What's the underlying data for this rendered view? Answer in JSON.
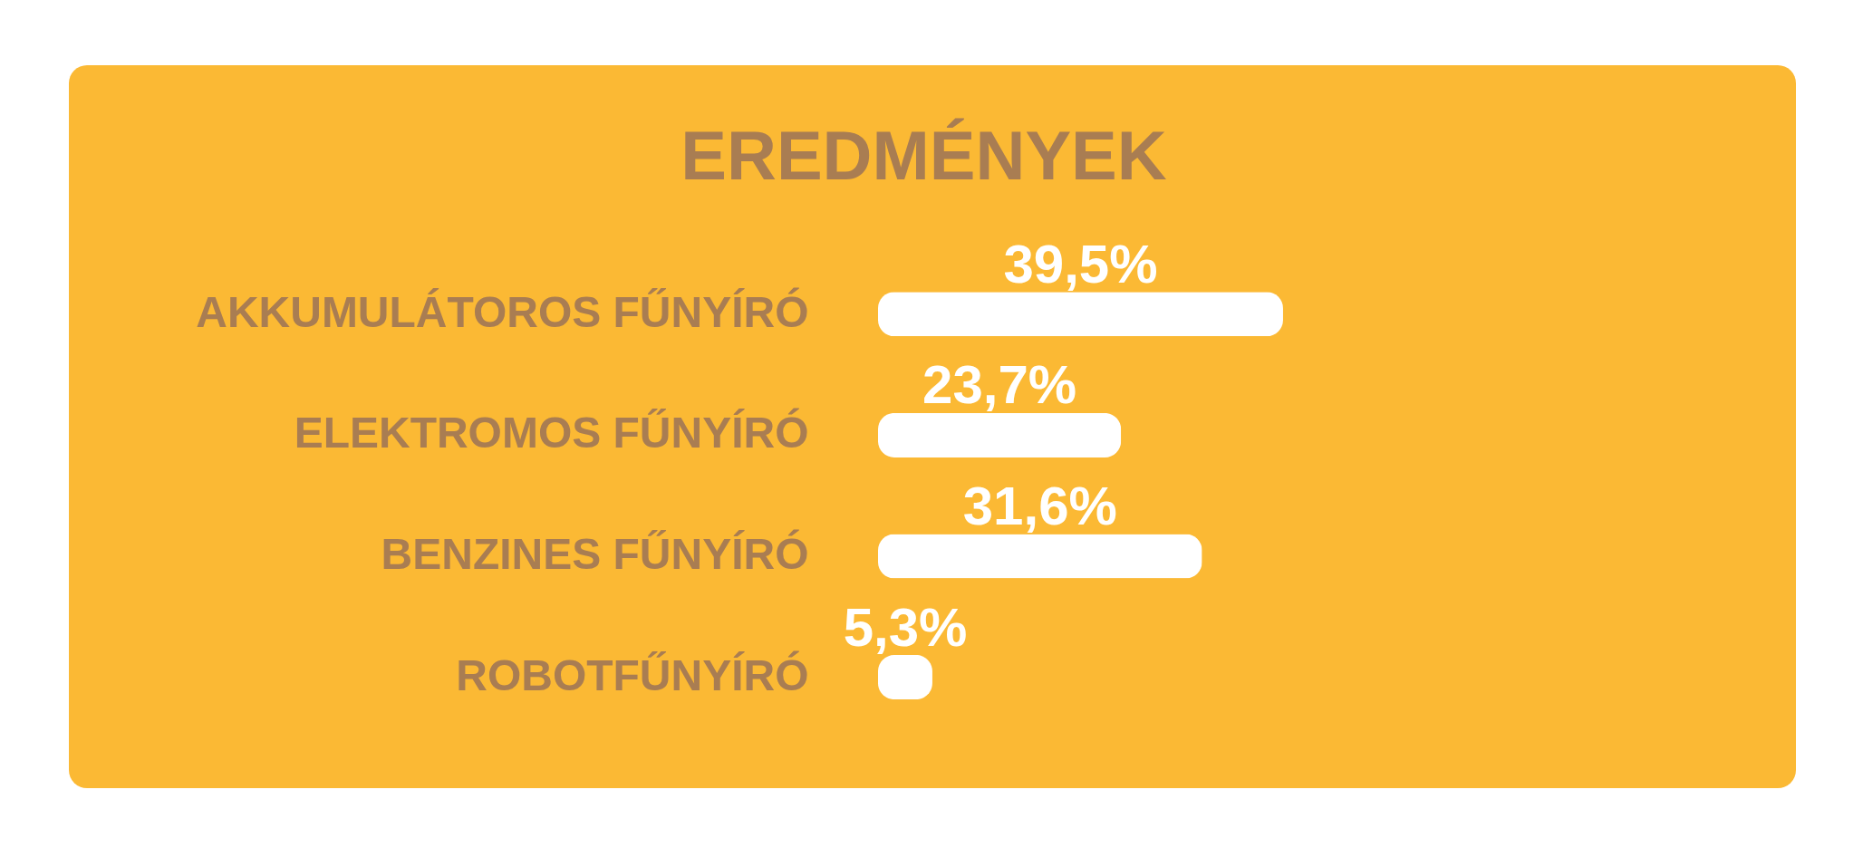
{
  "chart_data": {
    "type": "bar",
    "title": "EREDMÉNYEK",
    "orientation": "horizontal",
    "categories": [
      "AKKUMULÁTOROS FŰNYÍRÓ",
      "ELEKTROMOS FŰNYÍRÓ",
      "BENZINES FŰNYÍRÓ",
      "ROBOTFŰNYÍRÓ"
    ],
    "values": [
      39.5,
      23.7,
      31.6,
      5.3
    ],
    "value_labels": [
      "39,5%",
      "23,7%",
      "31,6%",
      "5,3%"
    ],
    "color": "#ffffff",
    "tick_labels": "y"
  }
}
